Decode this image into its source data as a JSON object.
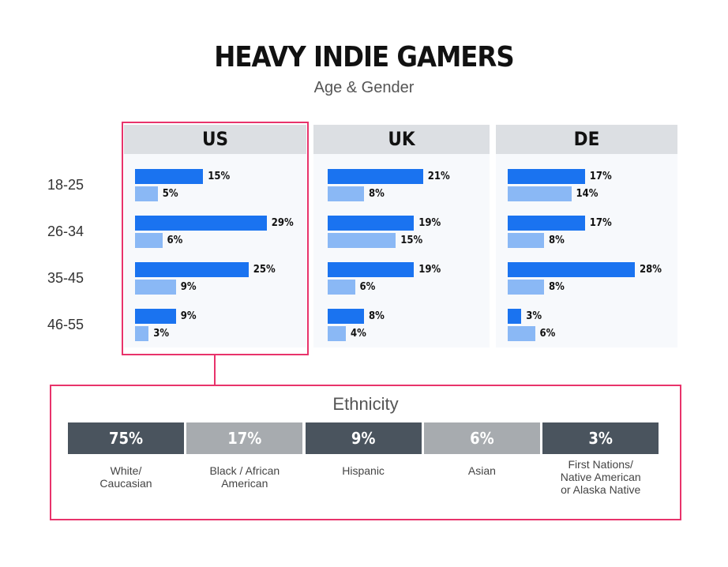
{
  "chart_data": [
    {
      "type": "bar",
      "title": "HEAVY INDIE GAMERS",
      "subtitle": "Age & Gender",
      "categories": [
        "18-25",
        "26-34",
        "35-45",
        "46-55"
      ],
      "panels": [
        {
          "title": "US",
          "series": [
            {
              "color": "#1a73f0",
              "values": [
                15,
                29,
                25,
                9
              ],
              "value_labels": [
                "15%",
                "29%",
                "25%",
                "9%"
              ]
            },
            {
              "color": "#8ab8f5",
              "values": [
                5,
                6,
                9,
                3
              ],
              "value_labels": [
                "5%",
                "6%",
                "9%",
                "3%"
              ]
            }
          ]
        },
        {
          "title": "UK",
          "series": [
            {
              "color": "#1a73f0",
              "values": [
                21,
                19,
                19,
                8
              ],
              "value_labels": [
                "21%",
                "19%",
                "19%",
                "8%"
              ]
            },
            {
              "color": "#8ab8f5",
              "values": [
                8,
                15,
                6,
                4
              ],
              "value_labels": [
                "8%",
                "15%",
                "6%",
                "4%"
              ]
            }
          ]
        },
        {
          "title": "DE",
          "series": [
            {
              "color": "#1a73f0",
              "values": [
                17,
                17,
                28,
                3
              ],
              "value_labels": [
                "17%",
                "17%",
                "28%",
                "3%"
              ]
            },
            {
              "color": "#8ab8f5",
              "values": [
                14,
                8,
                8,
                6
              ],
              "value_labels": [
                "14%",
                "8%",
                "8%",
                "6%"
              ]
            }
          ]
        }
      ]
    },
    {
      "type": "tiles",
      "title": "Ethnicity",
      "categories": [
        "White/\nCaucasian",
        "Black / African\nAmerican",
        "Hispanic",
        "Asian",
        "First Nations/\nNative American\nor Alaska Native"
      ],
      "values": [
        75,
        17,
        9,
        6,
        3
      ],
      "value_labels": [
        "75%",
        "17%",
        "9%",
        "6%",
        "3%"
      ],
      "colors": [
        "#4a545e",
        "#a7abaf",
        "#4a545e",
        "#a7abaf",
        "#4a545e"
      ]
    }
  ]
}
